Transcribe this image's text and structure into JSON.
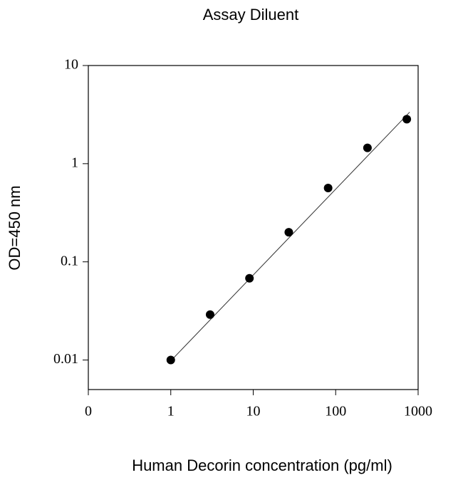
{
  "chart_data": {
    "type": "scatter",
    "title": "Assay Diluent",
    "x_label": "Human Decorin concentration (pg/ml)",
    "y_label": "OD=450 nm",
    "x_scale": "log",
    "y_scale": "log",
    "xlim": [
      0.1,
      1000
    ],
    "ylim": [
      0.005,
      10
    ],
    "xticks": [
      {
        "value": 0.1,
        "label": "0"
      },
      1,
      10,
      100,
      1000
    ],
    "yticks": [
      0.01,
      0.1,
      1,
      10
    ],
    "color": "#000000",
    "x": [
      1,
      3,
      9,
      27,
      81,
      243,
      729
    ],
    "values": [
      0.01,
      0.029,
      0.068,
      0.2,
      0.565,
      1.45,
      2.84
    ],
    "fit": {
      "x": [
        1,
        790
      ],
      "y": [
        0.0098,
        3.35
      ]
    }
  }
}
